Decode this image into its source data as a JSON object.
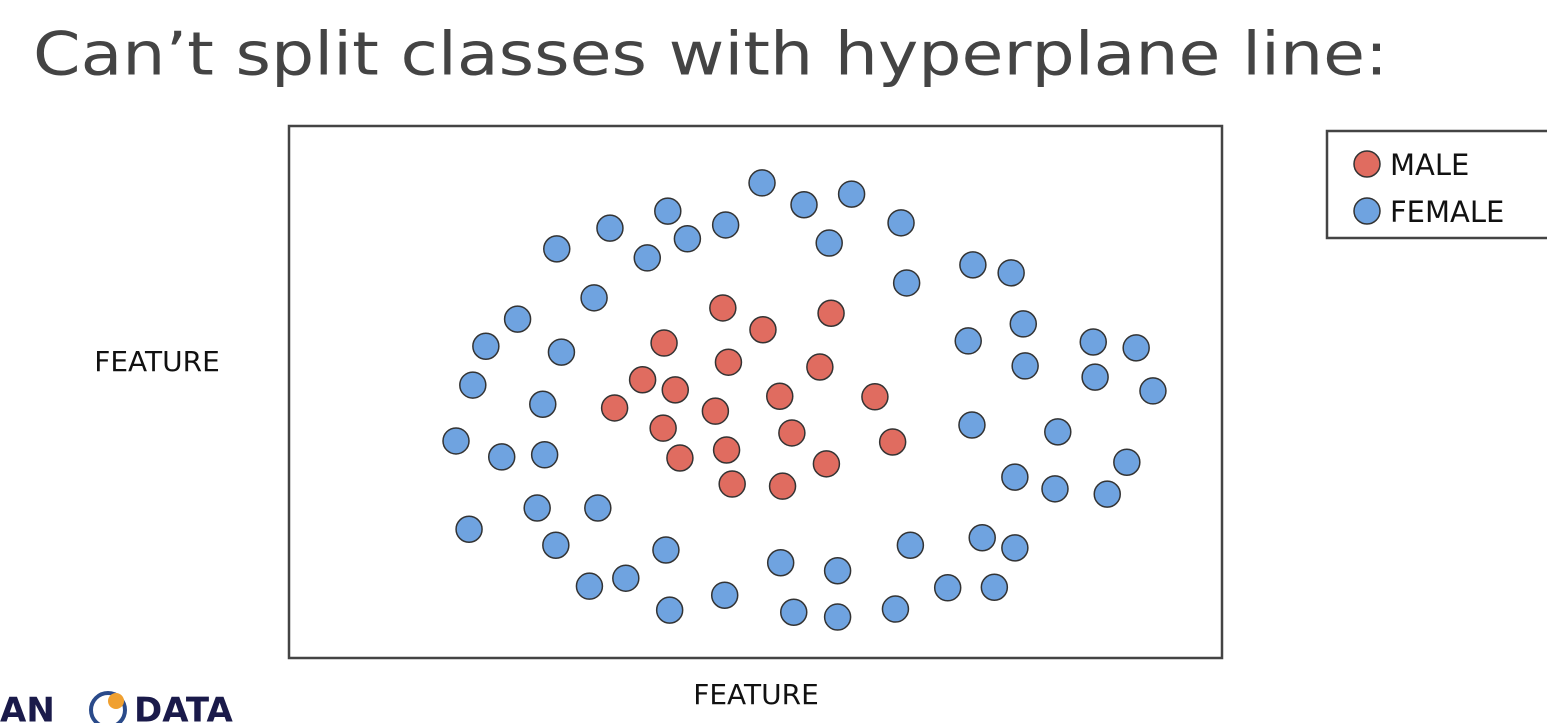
{
  "chart_data": {
    "type": "scatter",
    "title": "Can’t split classes with hyperplane line:",
    "x_label": "FEATURE",
    "y_label": "FEATURE",
    "xlim": [
      0,
      100
    ],
    "ylim": [
      0,
      100
    ],
    "legend": "outside-top-right",
    "series": [
      {
        "name": "MALE",
        "color": "#e06c60",
        "x": [
          46.5,
          58.1,
          50.8,
          40.2,
          47.1,
          56.9,
          37.9,
          41.4,
          52.6,
          62.8,
          34.9,
          45.7,
          40.1,
          53.9,
          64.7,
          46.9,
          41.9,
          57.6,
          47.5,
          52.9
        ],
        "y": [
          65.8,
          64.8,
          61.7,
          59.2,
          55.6,
          54.7,
          52.3,
          50.4,
          49.2,
          49.1,
          47.0,
          46.4,
          43.2,
          42.3,
          40.6,
          39.1,
          37.6,
          36.5,
          32.7,
          32.3
        ]
      },
      {
        "name": "FEMALE",
        "color": "#6fa3e0",
        "x": [
          50.7,
          55.2,
          60.3,
          40.6,
          34.4,
          46.8,
          65.6,
          28.7,
          42.7,
          38.4,
          57.9,
          73.3,
          77.4,
          66.2,
          32.7,
          24.5,
          78.7,
          21.1,
          29.2,
          72.8,
          86.2,
          90.8,
          78.9,
          86.4,
          19.7,
          92.6,
          27.2,
          73.2,
          17.9,
          82.4,
          22.8,
          27.4,
          89.8,
          77.8,
          82.1,
          87.7,
          26.6,
          33.1,
          19.3,
          28.6,
          40.4,
          66.6,
          74.3,
          77.8,
          52.7,
          58.8,
          32.2,
          36.1,
          70.6,
          75.6,
          40.8,
          46.7,
          54.1,
          58.8,
          65.0
        ],
        "y": [
          89.3,
          85.2,
          87.2,
          84.0,
          80.8,
          81.4,
          81.8,
          76.9,
          78.8,
          75.2,
          78.0,
          73.9,
          72.4,
          70.5,
          67.7,
          63.7,
          62.8,
          58.6,
          57.5,
          59.6,
          59.4,
          58.3,
          54.9,
          52.8,
          51.3,
          50.2,
          47.7,
          43.8,
          40.8,
          42.5,
          37.8,
          38.2,
          36.8,
          34.0,
          31.8,
          30.8,
          28.2,
          28.2,
          24.2,
          21.2,
          20.3,
          21.2,
          22.6,
          20.7,
          17.9,
          16.4,
          13.5,
          15.0,
          13.2,
          13.3,
          9.0,
          11.8,
          8.6,
          7.7,
          9.2
        ]
      }
    ]
  },
  "logo": {
    "left": "AN",
    "right": "DATA"
  }
}
